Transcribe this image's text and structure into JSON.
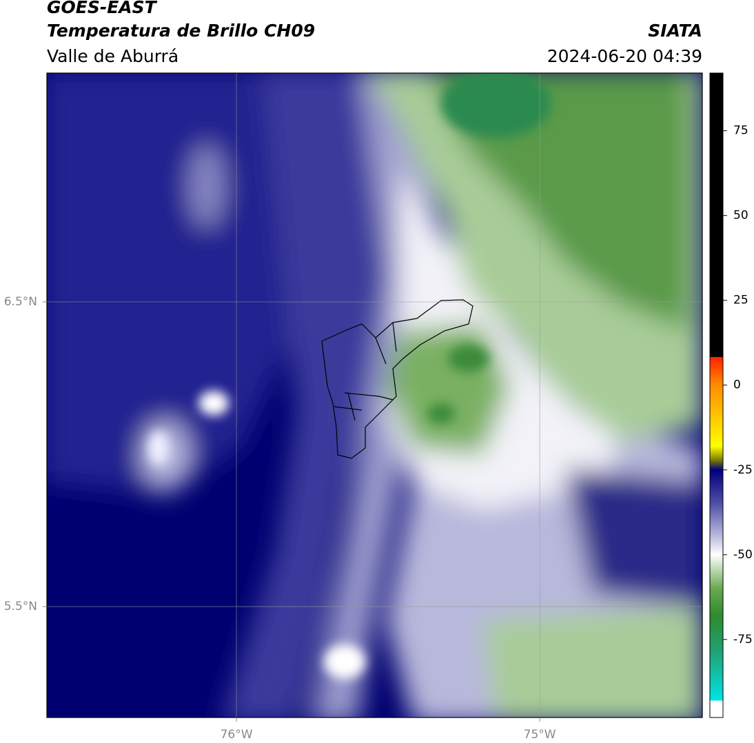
{
  "header": {
    "title": "GOES-EAST",
    "subtitle": "Temperatura de Brillo CH09",
    "region": "Valle de Aburrá",
    "source": "SIATA",
    "datetime": "2024-06-20 04:39"
  },
  "map": {
    "xlim": [
      -76.625,
      -74.464
    ],
    "ylim": [
      5.136,
      7.251
    ],
    "xticks": [
      {
        "value": -76,
        "label": "76°W"
      },
      {
        "value": -75,
        "label": "75°W"
      }
    ],
    "yticks": [
      {
        "value": 6.5,
        "label": "6.5°N"
      },
      {
        "value": 5.5,
        "label": "5.5°N"
      }
    ],
    "grid": true
  },
  "colorbar": {
    "lim": [
      -98,
      92
    ],
    "ticks": [
      75,
      50,
      25,
      0,
      -25,
      -50,
      -75
    ],
    "stops": [
      {
        "value": 92,
        "color": "#000000"
      },
      {
        "value": 8.3,
        "color": "#000000"
      },
      {
        "value": 8.3,
        "color": "#ff2000"
      },
      {
        "value": 0,
        "color": "#ff8c00"
      },
      {
        "value": -12,
        "color": "#ffd700"
      },
      {
        "value": -18,
        "color": "#ffff00"
      },
      {
        "value": -22,
        "color": "#808000"
      },
      {
        "value": -25,
        "color": "#000080"
      },
      {
        "value": -35,
        "color": "#5050a8"
      },
      {
        "value": -45,
        "color": "#c0c0e0"
      },
      {
        "value": -50,
        "color": "#ffffff"
      },
      {
        "value": -60,
        "color": "#6aa84f"
      },
      {
        "value": -68,
        "color": "#2e8b2e"
      },
      {
        "value": -78,
        "color": "#20a070"
      },
      {
        "value": -93,
        "color": "#00e5e5"
      },
      {
        "value": -93,
        "color": "#ffffff"
      },
      {
        "value": -98,
        "color": "#ffffff"
      }
    ]
  }
}
